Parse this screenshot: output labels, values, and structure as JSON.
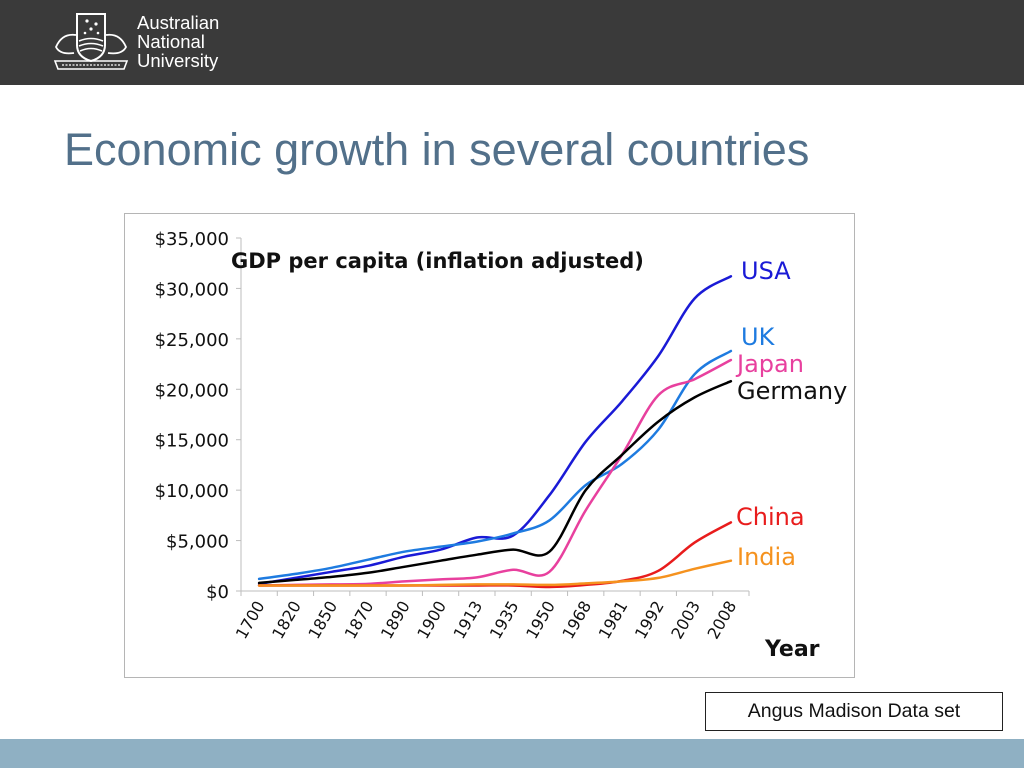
{
  "header": {
    "logo_lines": [
      "Australian",
      "National",
      "University"
    ]
  },
  "slide": {
    "title": "Economic growth in several countries",
    "source": "Angus Madison Data set"
  },
  "colors": {
    "header_bg": "#3a3a3a",
    "title": "#52708a",
    "footer_bar": "#8fb0c3"
  },
  "chart_data": {
    "type": "line",
    "title": "GDP per capita (inflation adjusted)",
    "xlabel": "Year",
    "ylabel": "",
    "categories": [
      "1700",
      "1820",
      "1850",
      "1870",
      "1890",
      "1900",
      "1913",
      "1935",
      "1950",
      "1968",
      "1981",
      "1992",
      "2003",
      "2008"
    ],
    "ylim": [
      0,
      35000
    ],
    "yticks": [
      0,
      5000,
      10000,
      15000,
      20000,
      25000,
      30000,
      35000
    ],
    "ytick_labels": [
      "$0",
      "$5,000",
      "$10,000",
      "$15,000",
      "$20,000",
      "$25,000",
      "$30,000",
      "$35,000"
    ],
    "grid": false,
    "legend": "inline labels at line ends",
    "series": [
      {
        "name": "USA",
        "color": "#1a1ad6",
        "values": [
          700,
          1300,
          1900,
          2500,
          3400,
          4100,
          5300,
          5500,
          9500,
          14800,
          18800,
          23300,
          29000,
          31200
        ]
      },
      {
        "name": "UK",
        "color": "#1e7be0",
        "values": [
          1200,
          1700,
          2300,
          3100,
          3900,
          4400,
          4900,
          5700,
          7000,
          10500,
          12600,
          16000,
          21500,
          23800
        ]
      },
      {
        "name": "Japan",
        "color": "#e8409e",
        "values": [
          550,
          600,
          650,
          700,
          950,
          1150,
          1350,
          2100,
          1900,
          8000,
          13500,
          19400,
          21000,
          22900
        ]
      },
      {
        "name": "Germany",
        "color": "#000000",
        "values": [
          800,
          1100,
          1400,
          1800,
          2400,
          3000,
          3600,
          4100,
          3900,
          10000,
          13500,
          16800,
          19200,
          20800
        ]
      },
      {
        "name": "China",
        "color": "#e81c1c",
        "values": [
          550,
          550,
          550,
          550,
          550,
          550,
          550,
          550,
          400,
          600,
          1000,
          2000,
          4800,
          6800
        ]
      },
      {
        "name": "India",
        "color": "#f5921e",
        "values": [
          550,
          550,
          550,
          550,
          550,
          600,
          650,
          650,
          600,
          750,
          950,
          1300,
          2200,
          3000
        ]
      }
    ]
  }
}
